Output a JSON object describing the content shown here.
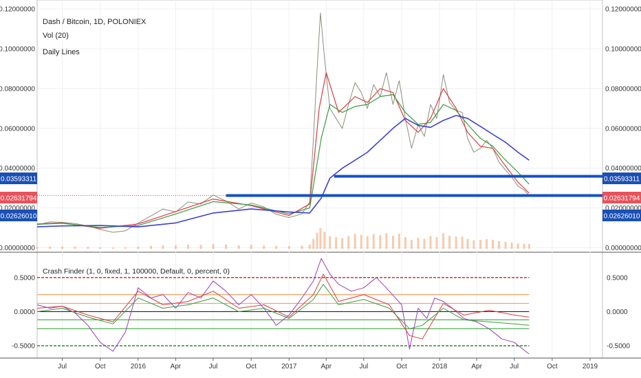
{
  "header": {
    "symbol_line": "Dash / Bitcoin, 1D, POLONIEX",
    "vol_label": "Vol (20)",
    "daily_lines_label": "Daily Lines"
  },
  "indicator": {
    "label": "Crash Finder (1, 0, fixed, 1, 100000, Default, 0, percent, 0)"
  },
  "price_badges": [
    {
      "text": "0.03593311",
      "value": 0.03593311,
      "color": "#1a4fb5"
    },
    {
      "text": "0.02631794",
      "value": 0.02631794,
      "color": "#e8525c"
    },
    {
      "text": "0.02626010",
      "value": 0.0262601,
      "color": "#1a4fb5"
    }
  ],
  "colors": {
    "price": "#8a8f7a",
    "ma_red": "#e0393e",
    "ma_green": "#3c9a3c",
    "ma_blue": "#3c3fd8",
    "support_line": "#1450c8",
    "volume": "#f2b48a",
    "osc_purple": "#9b3fb8",
    "osc_red": "#e0393e",
    "osc_green": "#3c9a3c",
    "level_red": "#e0393e",
    "level_orange": "#f4a460",
    "level_green": "#4caf50",
    "level_black": "#222222"
  },
  "chart_data": [
    {
      "type": "line",
      "title": "Dash / Bitcoin, 1D, POLONIEX",
      "x_ticks": [
        "Jul",
        "Oct",
        "2016",
        "Apr",
        "Jul",
        "Oct",
        "2017",
        "Apr",
        "Jul",
        "Oct",
        "2018",
        "Apr",
        "Jul",
        "Oct",
        "2019"
      ],
      "x_dates": [
        "2015-05-01",
        "2015-07-01",
        "2015-10-01",
        "2016-01-01",
        "2016-04-01",
        "2016-07-01",
        "2016-10-01",
        "2017-01-01",
        "2017-04-01",
        "2017-07-01",
        "2017-10-01",
        "2018-01-01",
        "2018-04-01",
        "2018-07-01",
        "2018-10-01",
        "2019-01-01",
        "2019-01-31"
      ],
      "y_ticks": [
        "0.12000000",
        "0.10000000",
        "0.08000000",
        "0.06000000",
        "0.04000000",
        "0.02000000",
        "0.00000000"
      ],
      "ylim": [
        -0.0005,
        0.1245
      ],
      "series": [
        {
          "name": "Price",
          "x": [
            "2015-05-01",
            "2015-06-01",
            "2015-07-01",
            "2015-08-01",
            "2015-09-01",
            "2015-10-01",
            "2015-11-01",
            "2015-12-01",
            "2016-01-01",
            "2016-02-01",
            "2016-03-01",
            "2016-04-01",
            "2016-05-01",
            "2016-06-01",
            "2016-07-01",
            "2016-08-01",
            "2016-09-01",
            "2016-10-01",
            "2016-11-01",
            "2016-12-01",
            "2017-01-01",
            "2017-02-01",
            "2017-02-20",
            "2017-03-01",
            "2017-03-10",
            "2017-03-18",
            "2017-03-28",
            "2017-04-10",
            "2017-04-25",
            "2017-05-10",
            "2017-05-25",
            "2017-06-10",
            "2017-06-25",
            "2017-07-10",
            "2017-07-25",
            "2017-08-10",
            "2017-08-25",
            "2017-09-10",
            "2017-09-25",
            "2017-10-10",
            "2017-10-25",
            "2017-11-10",
            "2017-11-25",
            "2017-12-10",
            "2017-12-25",
            "2018-01-10",
            "2018-01-25",
            "2018-02-10",
            "2018-02-25",
            "2018-03-10",
            "2018-03-25",
            "2018-04-10",
            "2018-04-25",
            "2018-05-10",
            "2018-05-25",
            "2018-06-10",
            "2018-06-25",
            "2018-07-10",
            "2018-07-25",
            "2018-08-06"
          ],
          "y": [
            0.0115,
            0.013,
            0.0128,
            0.0122,
            0.011,
            0.0092,
            0.0078,
            0.0085,
            0.0125,
            0.016,
            0.0195,
            0.018,
            0.023,
            0.022,
            0.0265,
            0.0235,
            0.0195,
            0.0225,
            0.0205,
            0.0168,
            0.0152,
            0.017,
            0.023,
            0.055,
            0.09,
            0.118,
            0.095,
            0.07,
            0.065,
            0.06,
            0.072,
            0.083,
            0.078,
            0.07,
            0.082,
            0.076,
            0.088,
            0.072,
            0.084,
            0.065,
            0.05,
            0.062,
            0.056,
            0.072,
            0.065,
            0.087,
            0.073,
            0.069,
            0.068,
            0.055,
            0.048,
            0.05,
            0.054,
            0.05,
            0.043,
            0.039,
            0.0355,
            0.031,
            0.029,
            0.0263
          ]
        },
        {
          "name": "MA fast",
          "x": [
            "2015-05-01",
            "2015-07-01",
            "2015-10-01",
            "2016-01-01",
            "2016-04-01",
            "2016-07-01",
            "2016-10-01",
            "2017-01-01",
            "2017-02-20",
            "2017-03-15",
            "2017-04-01",
            "2017-05-01",
            "2017-06-10",
            "2017-07-10",
            "2017-08-10",
            "2017-09-10",
            "2017-10-10",
            "2017-11-10",
            "2017-12-10",
            "2018-01-10",
            "2018-02-10",
            "2018-03-10",
            "2018-04-10",
            "2018-05-10",
            "2018-06-10",
            "2018-07-10",
            "2018-08-06"
          ],
          "y": [
            0.012,
            0.0125,
            0.0098,
            0.012,
            0.0182,
            0.0245,
            0.0212,
            0.0162,
            0.022,
            0.07,
            0.088,
            0.068,
            0.076,
            0.073,
            0.08,
            0.078,
            0.064,
            0.058,
            0.065,
            0.08,
            0.07,
            0.058,
            0.051,
            0.05,
            0.041,
            0.033,
            0.0275
          ]
        },
        {
          "name": "MA mid",
          "x": [
            "2015-05-01",
            "2015-07-01",
            "2015-10-01",
            "2016-01-01",
            "2016-04-01",
            "2016-07-01",
            "2016-10-01",
            "2017-01-01",
            "2017-02-20",
            "2017-03-20",
            "2017-04-10",
            "2017-05-10",
            "2017-06-10",
            "2017-07-10",
            "2017-08-10",
            "2017-09-10",
            "2017-10-10",
            "2017-11-10",
            "2017-12-10",
            "2018-01-10",
            "2018-02-10",
            "2018-03-10",
            "2018-04-10",
            "2018-05-10",
            "2018-06-10",
            "2018-07-10",
            "2018-08-06"
          ],
          "y": [
            0.0118,
            0.0123,
            0.0102,
            0.0112,
            0.017,
            0.0232,
            0.0215,
            0.017,
            0.02,
            0.055,
            0.072,
            0.068,
            0.071,
            0.072,
            0.076,
            0.077,
            0.068,
            0.062,
            0.063,
            0.072,
            0.069,
            0.062,
            0.055,
            0.051,
            0.044,
            0.038,
            0.032
          ]
        },
        {
          "name": "MA slow",
          "x": [
            "2015-05-01",
            "2015-07-01",
            "2015-10-01",
            "2016-01-01",
            "2016-04-01",
            "2016-07-01",
            "2016-10-01",
            "2017-01-01",
            "2017-02-20",
            "2017-03-20",
            "2017-04-10",
            "2017-05-10",
            "2017-06-10",
            "2017-07-10",
            "2017-08-10",
            "2017-09-10",
            "2017-10-10",
            "2017-11-10",
            "2017-12-10",
            "2018-01-10",
            "2018-02-10",
            "2018-03-10",
            "2018-04-10",
            "2018-05-10",
            "2018-06-10",
            "2018-07-10",
            "2018-08-06"
          ],
          "y": [
            0.0105,
            0.011,
            0.0112,
            0.0105,
            0.0125,
            0.0175,
            0.0195,
            0.018,
            0.0175,
            0.025,
            0.035,
            0.04,
            0.044,
            0.048,
            0.054,
            0.06,
            0.065,
            0.0615,
            0.0605,
            0.064,
            0.0665,
            0.065,
            0.061,
            0.057,
            0.053,
            0.048,
            0.044
          ]
        }
      ],
      "horizontal_levels": [
        {
          "value": 0.03593311,
          "from": "2017-04-20",
          "to": "2019-01-31"
        },
        {
          "value": 0.0262601,
          "from": "2016-08-01",
          "to": "2019-01-31"
        }
      ]
    },
    {
      "type": "line",
      "title": "Crash Finder (1, 0, fixed, 1, 100000, Default, 0, percent, 0)",
      "y_ticks": [
        "0.5000",
        "0.0000",
        "-0.5000"
      ],
      "ylim": [
        -0.68,
        0.82
      ],
      "levels": [
        {
          "value": 0.5,
          "color": "#e0393e",
          "dashed": true
        },
        {
          "value": 0.25,
          "color": "#f4a460",
          "dashed": false
        },
        {
          "value": 0.12,
          "color": "#f4a460",
          "dashed": false
        },
        {
          "value": 0.0,
          "color": "#222222",
          "dashed": false
        },
        {
          "value": -0.12,
          "color": "#4caf50",
          "dashed": false
        },
        {
          "value": -0.25,
          "color": "#4caf50",
          "dashed": false
        },
        {
          "value": -0.5,
          "color": "#2e8b2e",
          "dashed": true
        }
      ],
      "series": [
        {
          "name": "Osc purple",
          "x": [
            "2015-05-01",
            "2015-06-01",
            "2015-07-01",
            "2015-08-01",
            "2015-09-01",
            "2015-10-01",
            "2015-11-01",
            "2015-12-01",
            "2016-01-01",
            "2016-02-01",
            "2016-03-01",
            "2016-04-01",
            "2016-05-01",
            "2016-06-01",
            "2016-07-01",
            "2016-08-01",
            "2016-09-01",
            "2016-10-01",
            "2016-11-01",
            "2016-12-01",
            "2017-01-01",
            "2017-02-01",
            "2017-03-01",
            "2017-03-20",
            "2017-04-10",
            "2017-05-01",
            "2017-06-01",
            "2017-07-01",
            "2017-08-01",
            "2017-09-01",
            "2017-10-01",
            "2017-10-20",
            "2017-11-10",
            "2017-12-01",
            "2017-12-20",
            "2018-01-10",
            "2018-02-01",
            "2018-03-01",
            "2018-04-01",
            "2018-05-01",
            "2018-06-01",
            "2018-07-01",
            "2018-08-06"
          ],
          "y": [
            0.1,
            0.05,
            0.08,
            -0.02,
            -0.2,
            -0.45,
            -0.58,
            -0.3,
            0.35,
            0.2,
            0.25,
            0.05,
            0.28,
            0.2,
            0.45,
            0.3,
            0.1,
            0.25,
            0.05,
            -0.2,
            -0.05,
            0.2,
            0.45,
            0.78,
            0.55,
            0.4,
            0.3,
            0.35,
            0.5,
            0.3,
            0.1,
            -0.55,
            0.05,
            -0.1,
            0.2,
            0.15,
            0.05,
            -0.1,
            -0.15,
            -0.25,
            -0.4,
            -0.45,
            -0.62
          ]
        },
        {
          "name": "Osc red",
          "x": [
            "2015-05-01",
            "2015-07-01",
            "2015-09-01",
            "2015-11-01",
            "2016-01-01",
            "2016-03-01",
            "2016-05-01",
            "2016-07-01",
            "2016-09-01",
            "2016-11-01",
            "2017-01-01",
            "2017-03-01",
            "2017-03-25",
            "2017-05-01",
            "2017-07-01",
            "2017-09-01",
            "2017-10-20",
            "2017-11-20",
            "2018-01-10",
            "2018-03-01",
            "2018-05-01",
            "2018-07-01",
            "2018-08-06"
          ],
          "y": [
            0.05,
            0.08,
            -0.05,
            -0.15,
            0.3,
            0.1,
            0.15,
            0.3,
            0.05,
            0.1,
            -0.08,
            0.25,
            0.55,
            0.15,
            0.25,
            0.1,
            -0.35,
            -0.4,
            0.12,
            -0.05,
            0.02,
            -0.05,
            -0.08
          ]
        },
        {
          "name": "Osc green",
          "x": [
            "2015-05-01",
            "2015-07-01",
            "2015-09-01",
            "2015-11-01",
            "2016-01-01",
            "2016-03-01",
            "2016-05-01",
            "2016-07-01",
            "2016-09-01",
            "2016-11-01",
            "2017-01-01",
            "2017-03-01",
            "2017-03-25",
            "2017-05-01",
            "2017-07-01",
            "2017-09-01",
            "2017-10-20",
            "2017-11-20",
            "2018-01-10",
            "2018-03-01",
            "2018-05-01",
            "2018-07-01",
            "2018-08-06"
          ],
          "y": [
            0.0,
            0.05,
            -0.08,
            -0.18,
            0.2,
            0.05,
            0.1,
            0.2,
            0.0,
            0.05,
            -0.1,
            0.18,
            0.4,
            0.1,
            0.18,
            0.05,
            -0.25,
            -0.2,
            0.05,
            -0.12,
            -0.15,
            -0.18,
            -0.2
          ]
        }
      ]
    }
  ]
}
